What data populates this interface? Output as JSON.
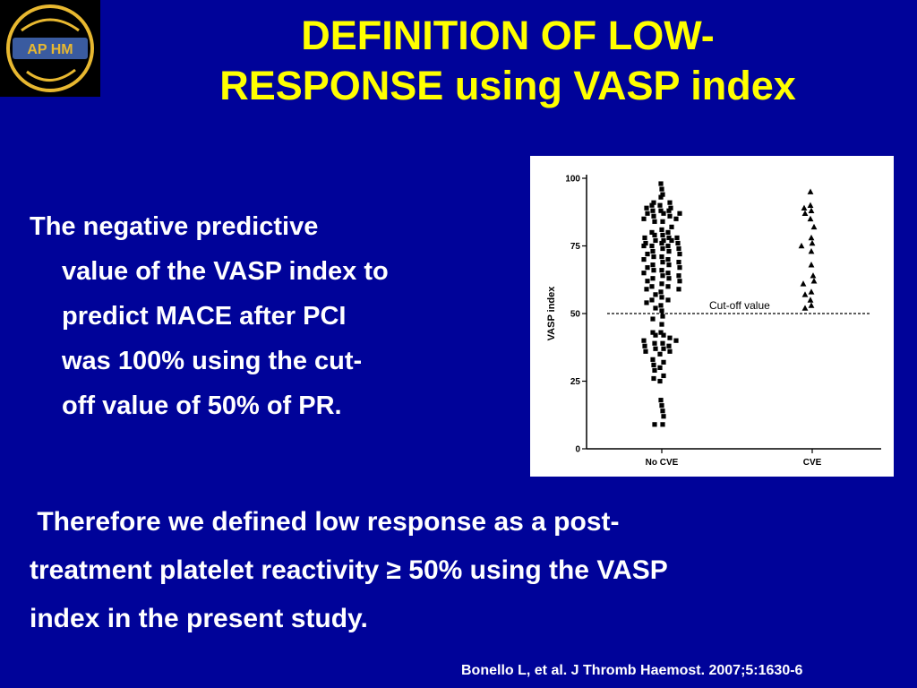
{
  "title": {
    "line1": "DEFINITION OF LOW-",
    "line2": "RESPONSE using VASP index"
  },
  "logo": {
    "text": "AP HM",
    "icon": "aphm-logo-icon",
    "colors": {
      "gold": "#E8B830",
      "blue": "#3A5BA0"
    }
  },
  "body": {
    "paragraph1": [
      "The negative predictive",
      "value of the VASP index to",
      "predict MACE after PCI",
      "was 100% using the cut-",
      "off value of 50% of PR."
    ],
    "paragraph2": [
      " Therefore we defined low response as a post-",
      "treatment platelet reactivity ≥ 50% using the VASP",
      "index in the present study."
    ]
  },
  "citation": "Bonello L, et al. J Thromb Haemost. 2007;5:1630-6",
  "colors": {
    "background": "#000399",
    "title": "#FFFF00",
    "text": "#FFFFFF"
  },
  "chart_data": {
    "type": "scatter",
    "title": "",
    "ylabel": "VASP index",
    "xlabel": "",
    "ylim": [
      0,
      100
    ],
    "yticks": [
      "0",
      "25",
      "50",
      "75",
      "100"
    ],
    "categories": [
      "No CVE",
      "CVE"
    ],
    "grid": false,
    "annotation": {
      "text": "Cut-off value",
      "y": 50,
      "style": "dashed"
    },
    "series": [
      {
        "category": "No CVE",
        "marker": "square",
        "values": [
          98,
          96,
          94,
          93,
          91,
          91,
          90,
          90,
          89,
          89,
          88,
          88,
          88,
          87,
          87,
          87,
          86,
          86,
          85,
          85,
          84,
          84,
          82,
          81,
          80,
          80,
          79,
          79,
          78,
          78,
          78,
          77,
          77,
          77,
          76,
          76,
          76,
          75,
          75,
          75,
          74,
          74,
          73,
          73,
          72,
          72,
          71,
          71,
          70,
          70,
          69,
          69,
          68,
          68,
          67,
          67,
          66,
          66,
          65,
          65,
          64,
          64,
          63,
          63,
          62,
          62,
          61,
          60,
          60,
          59,
          59,
          58,
          57,
          56,
          55,
          55,
          54,
          53,
          52,
          51,
          49,
          48,
          46,
          43,
          43,
          42,
          42,
          41,
          40,
          40,
          39,
          39,
          38,
          38,
          37,
          37,
          36,
          36,
          35,
          33,
          32,
          31,
          30,
          29,
          27,
          26,
          25,
          18,
          16,
          14,
          12,
          9,
          9
        ]
      },
      {
        "category": "CVE",
        "marker": "triangle",
        "values": [
          95,
          90,
          89,
          88,
          87,
          85,
          82,
          78,
          76,
          75,
          73,
          68,
          64,
          62,
          61,
          58,
          57,
          55,
          53,
          52
        ]
      }
    ]
  }
}
